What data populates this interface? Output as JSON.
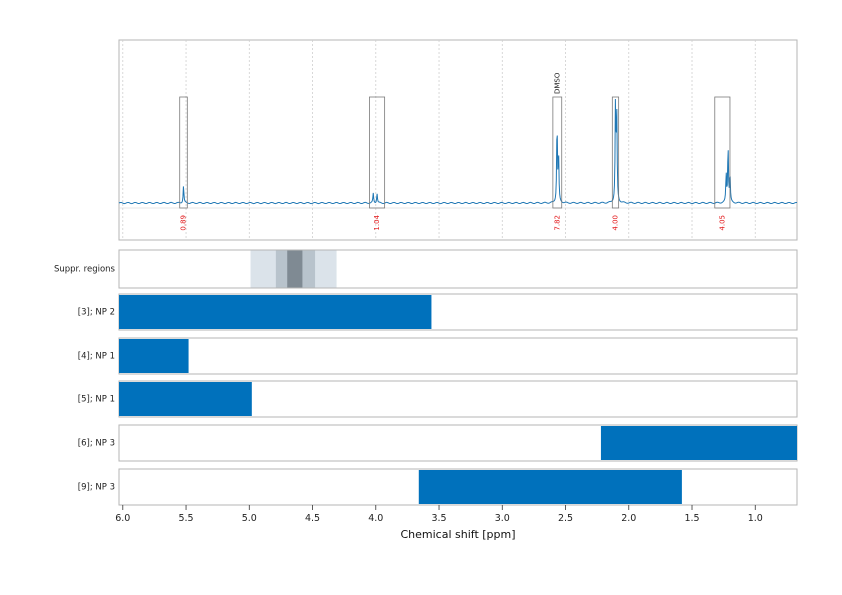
{
  "chart_data": {
    "type": "nmr-spectrum",
    "xlabel": "Chemical shift [ppm]",
    "xlim": [
      6.03,
      0.67
    ],
    "x_ticks": [
      6.0,
      5.5,
      5.0,
      4.5,
      4.0,
      3.5,
      3.0,
      2.5,
      2.0,
      1.5,
      1.0
    ],
    "x_tick_labels": [
      "6.0",
      "5.5",
      "5.0",
      "4.5",
      "4.0",
      "3.5",
      "3.0",
      "2.5",
      "2.0",
      "1.5",
      "1.0"
    ],
    "spectrum": {
      "color": "#1f77b4",
      "peaks": [
        {
          "ppm": 5.52,
          "height": 0.11
        },
        {
          "ppm": 4.02,
          "height": 0.06
        },
        {
          "ppm": 3.99,
          "height": 0.06
        },
        {
          "ppm": 2.567,
          "height": 0.5
        },
        {
          "ppm": 2.555,
          "height": 0.3
        },
        {
          "ppm": 2.105,
          "height": 0.62
        },
        {
          "ppm": 2.095,
          "height": 0.55
        },
        {
          "ppm": 1.23,
          "height": 0.18
        },
        {
          "ppm": 1.215,
          "height": 0.36
        },
        {
          "ppm": 1.2,
          "height": 0.18
        }
      ]
    },
    "integrals": [
      {
        "from": 5.55,
        "to": 5.49,
        "label": "0.89"
      },
      {
        "from": 4.05,
        "to": 3.93,
        "label": "1.04"
      },
      {
        "from": 2.6,
        "to": 2.53,
        "label": "7.82",
        "name": "DMSO"
      },
      {
        "from": 2.13,
        "to": 2.08,
        "label": "4.00"
      },
      {
        "from": 1.32,
        "to": 1.2,
        "label": "4.05"
      }
    ],
    "suppression": {
      "label": "Suppr. regions",
      "bands": [
        {
          "from": 4.99,
          "to": 4.31,
          "color": "#dbe3ea"
        },
        {
          "from": 4.79,
          "to": 4.48,
          "color": "#b8c3cc"
        },
        {
          "from": 4.7,
          "to": 4.58,
          "color": "#7f8a93"
        }
      ]
    },
    "bar_rows": [
      {
        "label": "[3]; NP 2",
        "from": 6.03,
        "to": 3.56
      },
      {
        "label": "[4]; NP 1",
        "from": 6.03,
        "to": 5.48
      },
      {
        "label": "[5]; NP 1",
        "from": 6.03,
        "to": 4.98
      },
      {
        "label": "[6]; NP 3",
        "from": 2.22,
        "to": 0.67
      },
      {
        "label": "[9]; NP 3",
        "from": 3.66,
        "to": 1.58
      }
    ],
    "bar_color": "#0071bc",
    "grid": true
  }
}
